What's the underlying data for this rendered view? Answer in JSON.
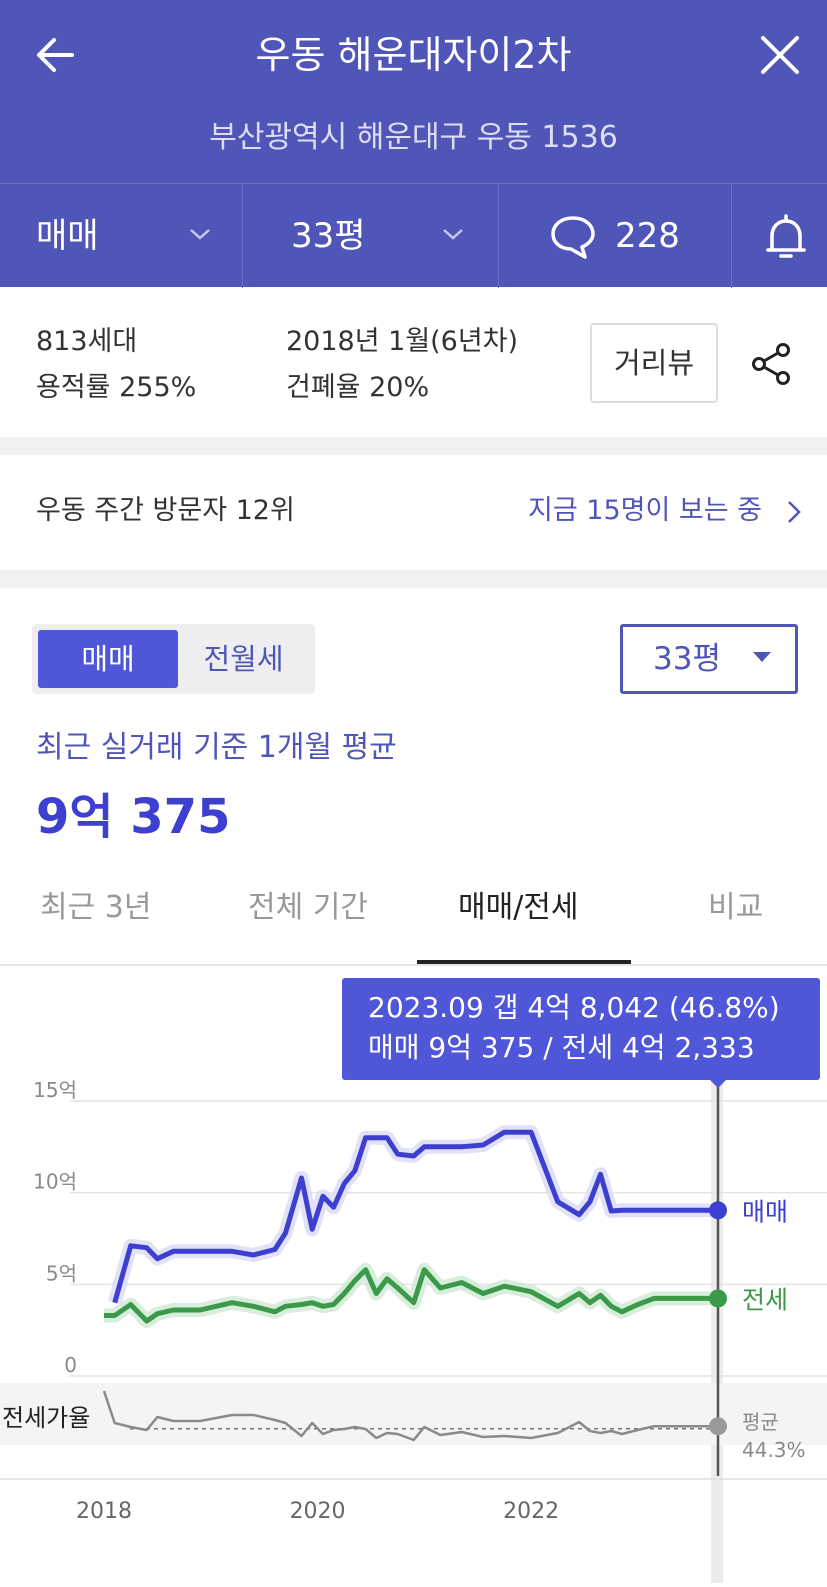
{
  "header": {
    "title": "우동 해운대자이2차",
    "address": "부산광역시 해운대구 우동 1536",
    "trade_type": "매매",
    "size": "33평",
    "comment_count": "228"
  },
  "info": {
    "households": "813세대",
    "built": "2018년 1월(6년차)",
    "floor_area_ratio": "용적률 255%",
    "building_coverage": "건폐율 20%",
    "street_view_label": "거리뷰"
  },
  "visitors": {
    "rank_text": "우동 주간 방문자 12위",
    "viewing_text": "지금 15명이 보는 중"
  },
  "price": {
    "toggle_active": "매매",
    "toggle_inactive": "전월세",
    "size_select": "33평",
    "avg_label": "최근 실거래 기준 1개월 평균",
    "avg_value": "9억 375"
  },
  "tabs": [
    "최근 3년",
    "전체 기간",
    "매매/전세",
    "비교"
  ],
  "tooltip": {
    "line1": "2023.09  갭 4억 8,042 (46.8%)",
    "line2": "매매 9억 375 / 전세 4억 2,333"
  },
  "colors": {
    "header_bg": "#4f56b8",
    "sale": "#3c3fd0",
    "jeonse": "#3a9a4a",
    "ratio": "#8a8a8a"
  },
  "chart_data": {
    "type": "line",
    "x_ticks": [
      "2018",
      "2020",
      "2022"
    ],
    "y_ticks": [
      "15억",
      "10억",
      "5억",
      "0"
    ],
    "ylim": [
      0,
      15
    ],
    "x": [
      2018.0,
      2018.1,
      2018.25,
      2018.4,
      2018.5,
      2018.65,
      2018.9,
      2019.2,
      2019.4,
      2019.6,
      2019.7,
      2019.85,
      2019.95,
      2020.05,
      2020.15,
      2020.25,
      2020.35,
      2020.45,
      2020.55,
      2020.65,
      2020.75,
      2020.9,
      2021.0,
      2021.15,
      2021.35,
      2021.55,
      2021.75,
      2022.0,
      2022.25,
      2022.45,
      2022.55,
      2022.65,
      2022.75,
      2022.85,
      2023.0,
      2023.15,
      2023.3,
      2023.45,
      2023.6,
      2023.75
    ],
    "series": [
      {
        "name": "매매",
        "end_label": "매매",
        "values": [
          null,
          4.0,
          7.1,
          7.0,
          6.4,
          6.8,
          6.8,
          6.8,
          6.6,
          6.9,
          7.8,
          10.8,
          8.0,
          9.8,
          9.2,
          10.5,
          11.2,
          13.0,
          13.0,
          13.0,
          12.1,
          12.0,
          12.5,
          12.5,
          12.5,
          12.6,
          13.3,
          13.3,
          9.5,
          8.8,
          9.5,
          11.0,
          9.0,
          9.04,
          9.04,
          9.04,
          9.04,
          9.04,
          9.04,
          9.04
        ]
      },
      {
        "name": "전세",
        "end_label": "전세",
        "values": [
          3.3,
          3.3,
          3.9,
          3.0,
          3.4,
          3.6,
          3.6,
          4.0,
          3.8,
          3.5,
          3.8,
          3.9,
          4.0,
          3.8,
          3.9,
          4.5,
          5.2,
          5.8,
          4.5,
          5.3,
          4.8,
          4.0,
          5.8,
          4.8,
          5.1,
          4.5,
          4.9,
          4.6,
          3.8,
          4.5,
          4.0,
          4.4,
          3.8,
          3.5,
          3.9,
          4.23,
          4.23,
          4.23,
          4.23,
          4.23
        ]
      }
    ],
    "ratio_series": {
      "name": "전세가율",
      "average_label": "평균",
      "average_value": "44.3%",
      "average": 44.3,
      "values": [
        82,
        50,
        46,
        43,
        56,
        52,
        52,
        58,
        58,
        53,
        50,
        37,
        50,
        39,
        43,
        44,
        46,
        44,
        35,
        40,
        39,
        33,
        46,
        38,
        41,
        36,
        37,
        35,
        40,
        51,
        42,
        40,
        42,
        39,
        43,
        46.8,
        46.8,
        46.8,
        46.8,
        46.8
      ]
    },
    "selected_point": "2023.09"
  }
}
